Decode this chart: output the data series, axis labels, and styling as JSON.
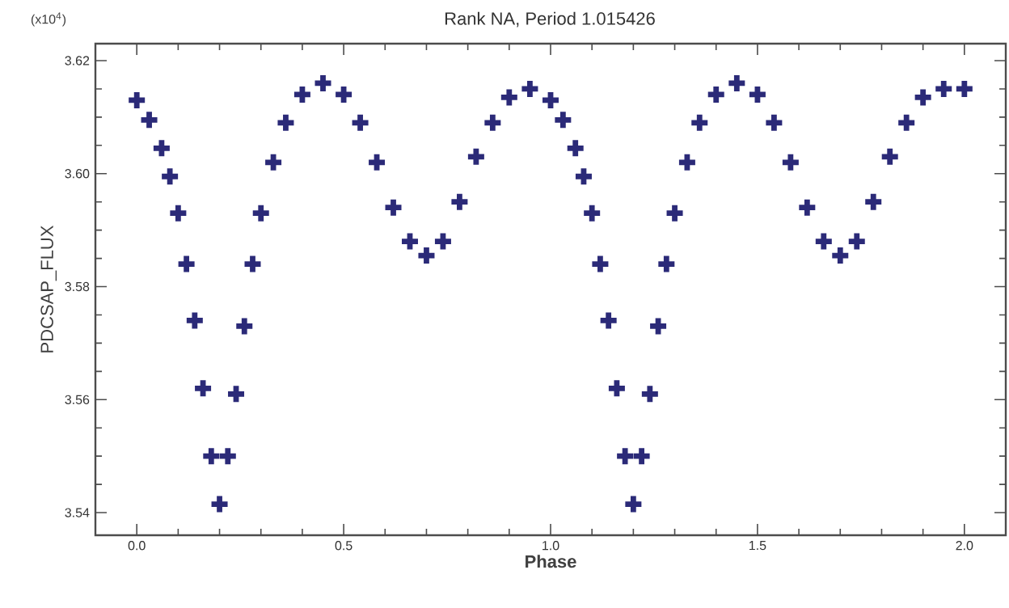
{
  "chart_data": {
    "type": "scatter",
    "title": "Rank NA, Period 1.015426",
    "xlabel": "Phase",
    "ylabel": "PDCSAP_FLUX",
    "annotations": [
      "(x10$^{4}$)"
    ],
    "marker": "cross",
    "grid": false,
    "xlim": [
      -0.1,
      2.1
    ],
    "ylim": [
      3.536,
      3.623
    ],
    "xticks": [
      {
        "value": 0,
        "label": "0.0"
      },
      0.5,
      {
        "value": 1,
        "label": "1.0"
      },
      1.5,
      {
        "value": 2,
        "label": "2.0"
      }
    ],
    "yticks": [
      3.54,
      3.56,
      3.58,
      {
        "value": 3.6,
        "label": "3.60"
      },
      3.62
    ],
    "series": [
      {
        "color": "#2b2a78",
        "x": [
          0.0,
          0.03,
          0.06,
          0.08,
          0.1,
          0.12,
          0.14,
          0.16,
          0.18,
          0.2,
          0.22,
          0.24,
          0.26,
          0.28,
          0.3,
          0.33,
          0.36,
          0.4,
          0.45,
          0.5,
          0.54,
          0.58,
          0.62,
          0.66,
          0.7,
          0.74,
          0.78,
          0.82,
          0.86,
          0.9,
          0.95,
          1.0,
          1.03,
          1.06,
          1.08,
          1.1,
          1.12,
          1.14,
          1.16,
          1.18,
          1.2,
          1.22,
          1.24,
          1.26,
          1.28,
          1.3,
          1.33,
          1.36,
          1.4,
          1.45,
          1.5,
          1.54,
          1.58,
          1.62,
          1.66,
          1.7,
          1.74,
          1.78,
          1.82,
          1.86,
          1.9,
          1.95,
          2.0
        ],
        "values": [
          3.613,
          3.6095,
          3.6045,
          3.5995,
          3.593,
          3.584,
          3.574,
          3.562,
          3.55,
          3.5415,
          3.55,
          3.561,
          3.573,
          3.584,
          3.593,
          3.602,
          3.609,
          3.614,
          3.616,
          3.614,
          3.609,
          3.602,
          3.594,
          3.588,
          3.5855,
          3.588,
          3.595,
          3.603,
          3.609,
          3.6135,
          3.615,
          3.613,
          3.6095,
          3.6045,
          3.5995,
          3.593,
          3.584,
          3.574,
          3.562,
          3.55,
          3.5415,
          3.55,
          3.561,
          3.573,
          3.584,
          3.593,
          3.602,
          3.609,
          3.614,
          3.616,
          3.614,
          3.609,
          3.602,
          3.594,
          3.588,
          3.5855,
          3.588,
          3.595,
          3.603,
          3.609,
          3.6135,
          3.615,
          3.615
        ]
      }
    ]
  }
}
